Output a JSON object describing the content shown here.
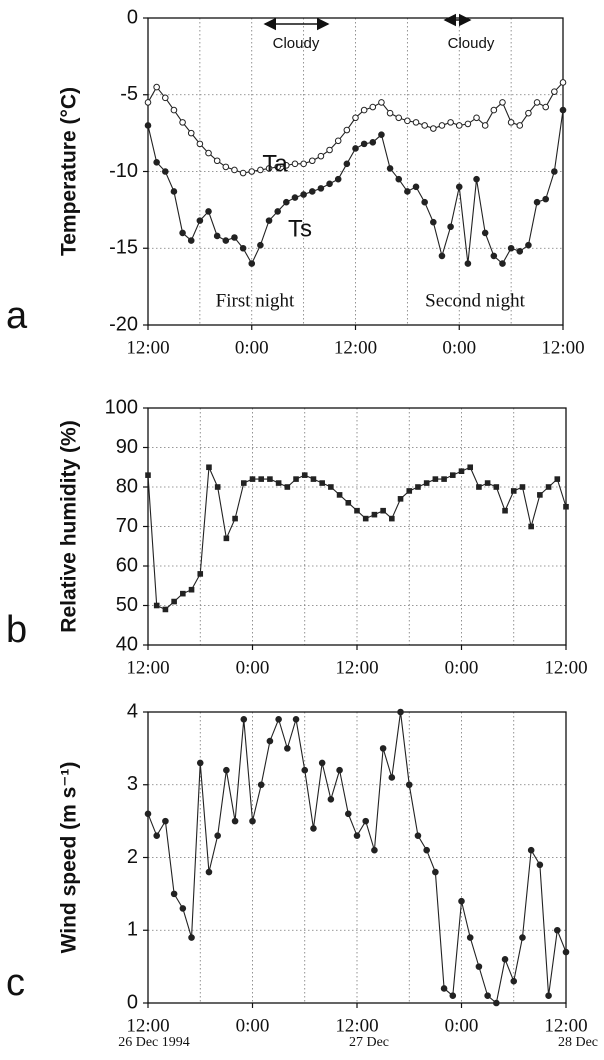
{
  "chart_data": [
    {
      "type": "line",
      "panel_label": "a",
      "ylabel": "Temperature (°C)",
      "x": [
        0,
        1,
        2,
        3,
        4,
        5,
        6,
        7,
        8,
        9,
        10,
        11,
        12,
        13,
        14,
        15,
        16,
        17,
        18,
        19,
        20,
        21,
        22,
        23,
        24,
        25,
        26,
        27,
        28,
        29,
        30,
        31,
        32,
        33,
        34,
        35,
        36,
        37,
        38,
        39,
        40,
        41,
        42,
        43,
        44,
        45,
        46,
        47,
        48
      ],
      "series": [
        {
          "name": "Ta",
          "color": "#222222",
          "marker": "open-circle",
          "values": [
            -5.5,
            -4.5,
            -5.2,
            -6,
            -6.8,
            -7.5,
            -8.2,
            -8.8,
            -9.3,
            -9.7,
            -9.9,
            -10.1,
            -10,
            -9.9,
            -9.8,
            -9.7,
            -9.6,
            -9.5,
            -9.5,
            -9.3,
            -9,
            -8.6,
            -8,
            -7.3,
            -6.5,
            -6,
            -5.8,
            -5.5,
            -6.2,
            -6.5,
            -6.7,
            -6.8,
            -7,
            -7.2,
            -7,
            -6.8,
            -7,
            -6.9,
            -6.5,
            -7,
            -6,
            -5.5,
            -6.8,
            -7,
            -6.2,
            -5.5,
            -5.8,
            -4.8,
            -4.2
          ]
        },
        {
          "name": "Ts",
          "color": "#222222",
          "marker": "circle",
          "values": [
            -7,
            -9.4,
            -10,
            -11.3,
            -14,
            -14.5,
            -13.2,
            -12.6,
            -14.2,
            -14.5,
            -14.3,
            -15,
            -16,
            -14.8,
            -13.2,
            -12.6,
            -12,
            -11.7,
            -11.5,
            -11.3,
            -11.1,
            -10.8,
            -10.5,
            -9.5,
            -8.5,
            -8.2,
            -8.1,
            -7.6,
            -9.8,
            -10.5,
            -11.3,
            -11,
            -12,
            -13.3,
            -15.5,
            -13.6,
            -11,
            -16,
            -10.5,
            -14,
            -15.5,
            -16,
            -15,
            -15.2,
            -14.8,
            -12,
            -11.8,
            -10,
            -6
          ]
        }
      ],
      "xlim": [
        0,
        48
      ],
      "xticks": [
        {
          "value": 0,
          "label": "12:00"
        },
        {
          "value": 12,
          "label": "0:00"
        },
        {
          "value": 24,
          "label": "12:00"
        },
        {
          "value": 36,
          "label": "0:00"
        },
        {
          "value": 48,
          "label": "12:00"
        }
      ],
      "xminorticks": [
        6,
        18,
        30,
        42
      ],
      "ylim": [
        -20,
        0
      ],
      "yticks": [
        -20,
        -15,
        -10,
        -5,
        0
      ],
      "grid": true,
      "annotations": [
        "Ta",
        "Ts",
        "First night",
        "Second night",
        "Cloudy",
        "Cloudy"
      ]
    },
    {
      "type": "line",
      "panel_label": "b",
      "ylabel": "Relative humidity (%)",
      "x": [
        0,
        1,
        2,
        3,
        4,
        5,
        6,
        7,
        8,
        9,
        10,
        11,
        12,
        13,
        14,
        15,
        16,
        17,
        18,
        19,
        20,
        21,
        22,
        23,
        24,
        25,
        26,
        27,
        28,
        29,
        30,
        31,
        32,
        33,
        34,
        35,
        36,
        37,
        38,
        39,
        40,
        41,
        42,
        43,
        44,
        45,
        46,
        47,
        48
      ],
      "series": [
        {
          "name": "RH",
          "color": "#222222",
          "marker": "square",
          "values": [
            83,
            50,
            49,
            51,
            53,
            54,
            58,
            85,
            80,
            67,
            72,
            81,
            82,
            82,
            82,
            81,
            80,
            82,
            83,
            82,
            81,
            80,
            78,
            76,
            74,
            72,
            73,
            74,
            72,
            77,
            79,
            80,
            81,
            82,
            82,
            83,
            84,
            85,
            80,
            81,
            80,
            74,
            79,
            80,
            70,
            78,
            80,
            82,
            75
          ]
        }
      ],
      "xlim": [
        0,
        48
      ],
      "xticks": [
        {
          "value": 0,
          "label": "12:00"
        },
        {
          "value": 12,
          "label": "0:00"
        },
        {
          "value": 24,
          "label": "12:00"
        },
        {
          "value": 36,
          "label": "0:00"
        },
        {
          "value": 48,
          "label": "12:00"
        }
      ],
      "xminorticks": [
        6,
        18,
        30,
        42
      ],
      "ylim": [
        40,
        100
      ],
      "yticks": [
        40,
        50,
        60,
        70,
        80,
        90,
        100
      ],
      "grid": true
    },
    {
      "type": "line",
      "panel_label": "c",
      "ylabel": "Wind speed (m s⁻¹)",
      "x": [
        0,
        1,
        2,
        3,
        4,
        5,
        6,
        7,
        8,
        9,
        10,
        11,
        12,
        13,
        14,
        15,
        16,
        17,
        18,
        19,
        20,
        21,
        22,
        23,
        24,
        25,
        26,
        27,
        28,
        29,
        30,
        31,
        32,
        33,
        34,
        35,
        36,
        37,
        38,
        39,
        40,
        41,
        42,
        43,
        44,
        45,
        46,
        47,
        48
      ],
      "series": [
        {
          "name": "Wind",
          "color": "#222222",
          "marker": "circle",
          "values": [
            2.6,
            2.3,
            2.5,
            1.5,
            1.3,
            0.9,
            3.3,
            1.8,
            2.3,
            3.2,
            2.5,
            3.9,
            2.5,
            3.0,
            3.6,
            3.9,
            3.5,
            3.9,
            3.2,
            2.4,
            3.3,
            2.8,
            3.2,
            2.6,
            2.3,
            2.5,
            2.1,
            3.5,
            3.1,
            4.0,
            3.0,
            2.3,
            2.1,
            1.8,
            0.2,
            0.1,
            1.4,
            0.9,
            0.5,
            0.1,
            0.0,
            0.6,
            0.3,
            0.9,
            2.1,
            1.9,
            0.1,
            1.0,
            0.7
          ]
        }
      ],
      "xlim": [
        0,
        48
      ],
      "xticks": [
        {
          "value": 0,
          "label": "12:00"
        },
        {
          "value": 12,
          "label": "0:00"
        },
        {
          "value": 24,
          "label": "12:00"
        },
        {
          "value": 36,
          "label": "0:00"
        },
        {
          "value": 48,
          "label": "12:00"
        }
      ],
      "date_labels": [
        {
          "value": 0,
          "label": "26 Dec 1994"
        },
        {
          "value": 24,
          "label": "27 Dec"
        },
        {
          "value": 48,
          "label": "28 Dec"
        }
      ],
      "xminorticks": [
        6,
        18,
        30,
        42
      ],
      "ylim": [
        0,
        4
      ],
      "yticks": [
        0,
        1,
        2,
        3,
        4
      ],
      "grid": true
    }
  ]
}
